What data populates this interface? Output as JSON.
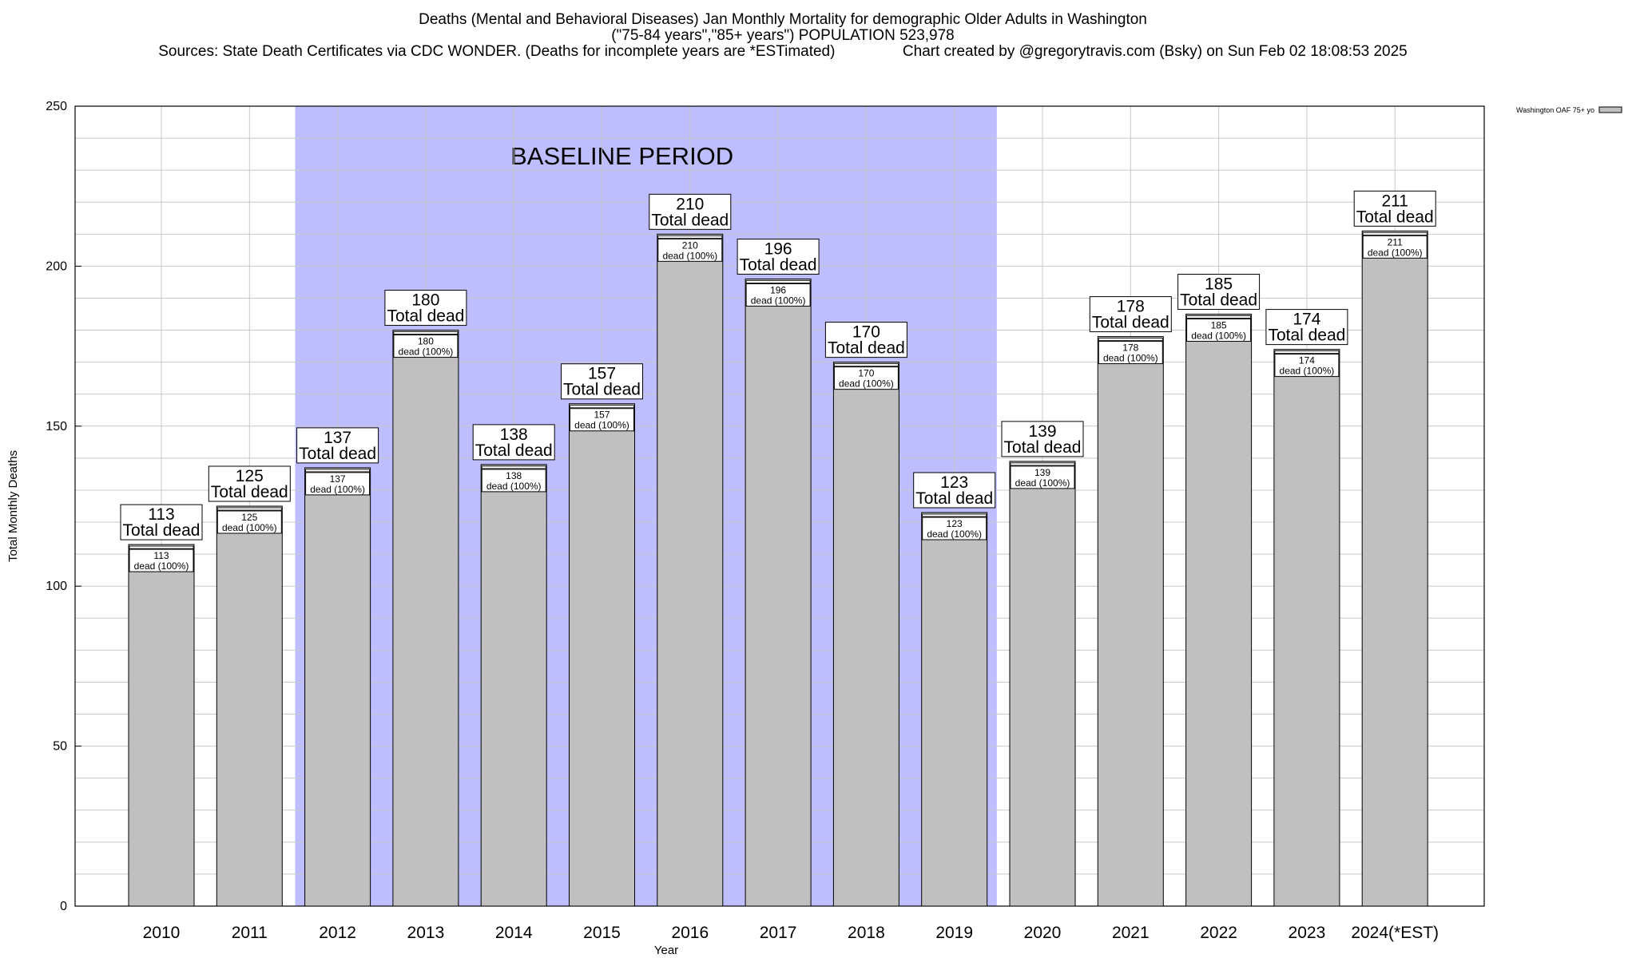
{
  "header": {
    "title": "Deaths (Mental and Behavioral Diseases) Jan Monthly Mortality for demographic Older Adults in Washington",
    "subtitle": "(\"75-84 years\",\"85+ years\") POPULATION 523,978",
    "sources": "Sources: State Death Certificates via CDC WONDER. (Deaths for incomplete years are *ESTimated)                Chart created by @gregorytravis.com (Bsky) on Sun Feb 02 18:08:53 2025"
  },
  "chart_data": {
    "type": "bar",
    "categories": [
      "2010",
      "2011",
      "2012",
      "2013",
      "2014",
      "2015",
      "2016",
      "2017",
      "2018",
      "2019",
      "2020",
      "2021",
      "2022",
      "2023",
      "2024(*EST)"
    ],
    "series": [
      {
        "name": "Washington OAF 75+ yo",
        "values": [
          113,
          125,
          137,
          180,
          138,
          157,
          210,
          196,
          170,
          123,
          139,
          178,
          185,
          174,
          211
        ]
      }
    ],
    "xlabel": "Year",
    "ylabel": "Total Monthly Deaths",
    "ylim": [
      0,
      250
    ],
    "yticks": [
      0,
      50,
      100,
      150,
      200,
      250
    ],
    "grid": true,
    "legend_placement": "top-right",
    "baseline_region": {
      "label": "BASELINE PERIOD",
      "from": "2012",
      "to": "2019"
    },
    "label_total_suffix": "Total dead",
    "label_inner_suffix": "dead (100%)",
    "colors": {
      "bar": "#c0c0c0",
      "baseline": "#bebefe",
      "grid": "#c8c8c8"
    }
  }
}
